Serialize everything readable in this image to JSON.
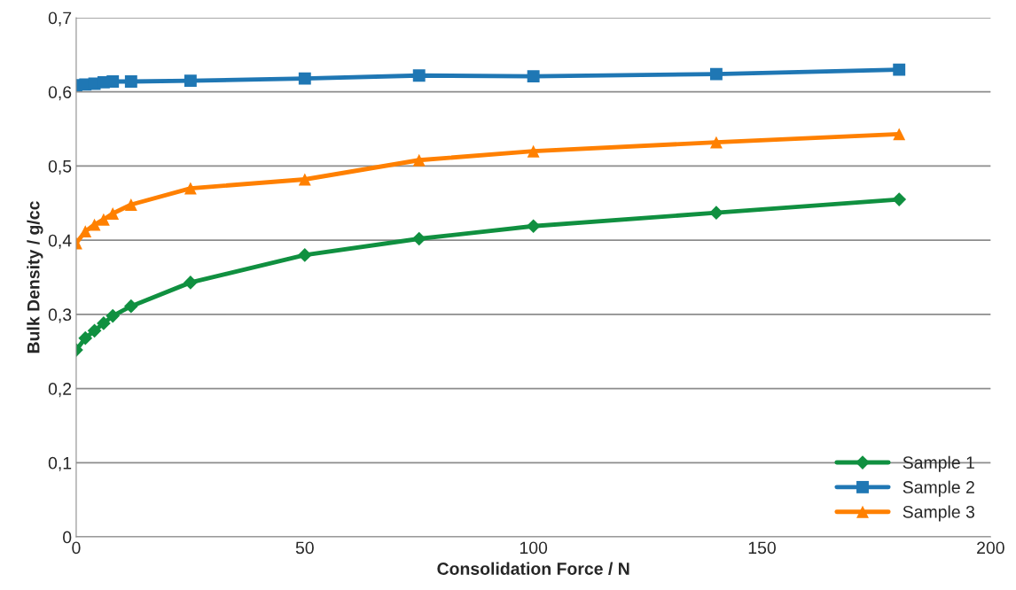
{
  "chart_data": {
    "type": "line",
    "xlabel": "Consolidation Force / N",
    "ylabel": "Bulk Density / g/cc",
    "x": [
      0,
      2,
      4,
      6,
      8,
      12,
      25,
      50,
      75,
      100,
      140,
      180
    ],
    "series": [
      {
        "name": "Sample 1",
        "color": "#109040",
        "marker": "diamond",
        "values": [
          0.252,
          0.268,
          0.278,
          0.288,
          0.298,
          0.311,
          0.343,
          0.38,
          0.402,
          0.419,
          0.437,
          0.455
        ]
      },
      {
        "name": "Sample 2",
        "color": "#1f77b4",
        "marker": "square",
        "values": [
          0.609,
          0.61,
          0.611,
          0.613,
          0.614,
          0.614,
          0.615,
          0.618,
          0.622,
          0.621,
          0.624,
          0.63
        ]
      },
      {
        "name": "Sample 3",
        "color": "#ff8000",
        "marker": "triangle",
        "values": [
          0.396,
          0.412,
          0.421,
          0.428,
          0.436,
          0.448,
          0.47,
          0.482,
          0.508,
          0.52,
          0.532,
          0.543
        ]
      }
    ],
    "xlim": [
      0,
      200
    ],
    "xticks": [
      0,
      50,
      100,
      150,
      200
    ],
    "ylim": [
      0,
      0.7
    ],
    "yticks": [
      {
        "value": 0,
        "label": "0"
      },
      {
        "value": 0.1,
        "label": "0,1"
      },
      {
        "value": 0.2,
        "label": "0,2"
      },
      {
        "value": 0.3,
        "label": "0,3"
      },
      {
        "value": 0.4,
        "label": "0,4"
      },
      {
        "value": 0.5,
        "label": "0,5"
      },
      {
        "value": 0.6,
        "label": "0,6"
      },
      {
        "value": 0.7,
        "label": "0,7"
      }
    ],
    "grid": "y",
    "legend": "bottom right"
  }
}
